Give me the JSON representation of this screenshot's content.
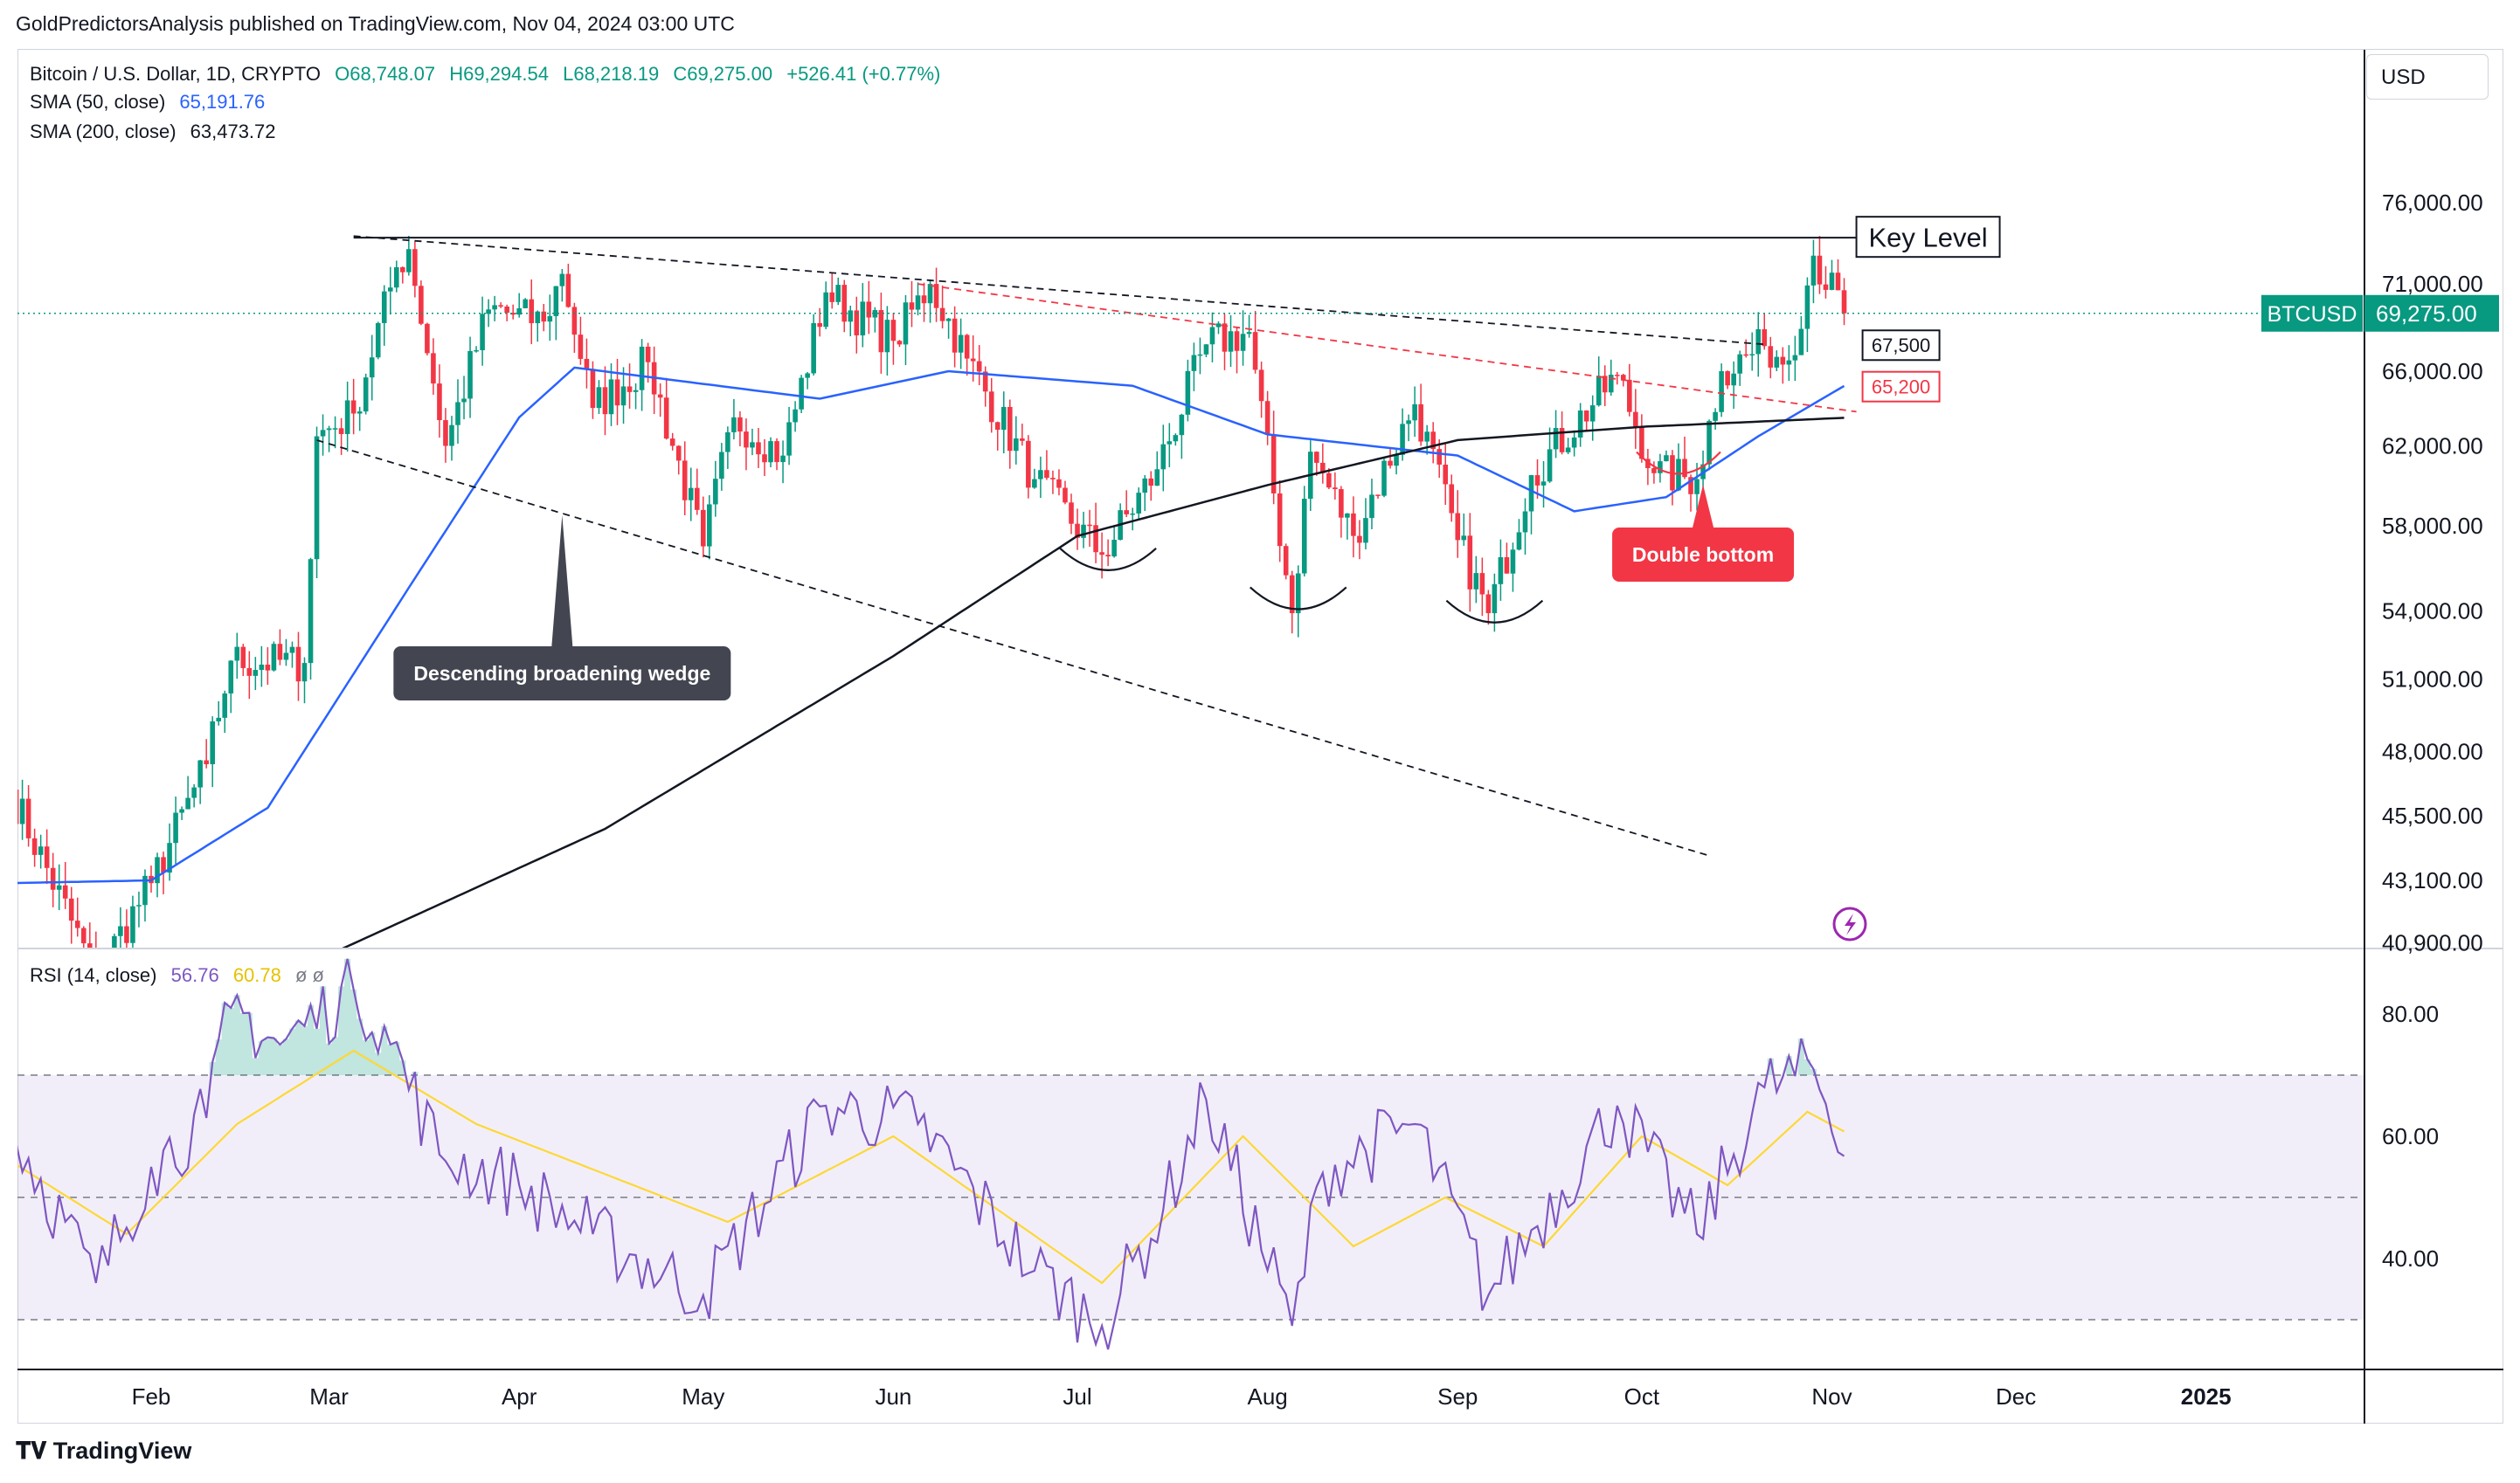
{
  "header": {
    "publisher": "GoldPredictorsAnalysis published on TradingView.com, Nov 04, 2024 03:00 UTC"
  },
  "legend": {
    "symbol": "Bitcoin / U.S. Dollar, 1D, CRYPTO",
    "open": "O68,748.07",
    "high": "H69,294.54",
    "low": "L68,218.19",
    "close": "C69,275.00",
    "change": "+526.41 (+0.77%)",
    "sma50_label": "SMA (50, close)",
    "sma50_value": "65,191.76",
    "sma200_label": "SMA (200, close)",
    "sma200_value": "63,473.72",
    "rsi_label": "RSI (14, close)",
    "rsi_value": "56.76",
    "rsi_ma_value": "60.78",
    "rsi_extra": "ø ø"
  },
  "currency_button": "USD",
  "footer": {
    "brand": "TradingView"
  },
  "colors": {
    "up": "#089981",
    "down": "#f23645",
    "sma50": "#2962ff",
    "sma200": "#131722",
    "rsi": "#7e57c2",
    "rsi_ma": "#fdd835",
    "rsi_band": "#7e57c2"
  },
  "chart_data": [
    {
      "type": "candlestick",
      "title": "Bitcoin / U.S. Dollar, 1D, CRYPTO",
      "x_tick_labels": [
        "Feb",
        "Mar",
        "Apr",
        "May",
        "Jun",
        "Jul",
        "Aug",
        "Sep",
        "Oct",
        "Nov",
        "Dec",
        "2025"
      ],
      "y_tick_labels": [
        "76,000.00",
        "71,000.00",
        "66,000.00",
        "62,000.00",
        "58,000.00",
        "54,000.00",
        "51,000.00",
        "48,000.00",
        "45,500.00",
        "43,100.00",
        "40,900.00"
      ],
      "y_scale": "log",
      "last_price_label": {
        "symbol": "BTCUSD",
        "price": "69,275.00"
      },
      "series": [
        {
          "name": "BTCUSD",
          "type": "candlestick"
        },
        {
          "name": "SMA (50, close)",
          "type": "line"
        },
        {
          "name": "SMA (200, close)",
          "type": "line"
        }
      ],
      "anchors": [
        {
          "date": "2024-01-09",
          "price": 46500
        },
        {
          "date": "2024-01-23",
          "price": 39800
        },
        {
          "date": "2024-02-01",
          "price": 43000
        },
        {
          "date": "2024-02-10",
          "price": 47500
        },
        {
          "date": "2024-02-14",
          "price": 51800
        },
        {
          "date": "2024-02-26",
          "price": 51700
        },
        {
          "date": "2024-02-28",
          "price": 62500
        },
        {
          "date": "2024-03-05",
          "price": 63700
        },
        {
          "date": "2024-03-12",
          "price": 72000
        },
        {
          "date": "2024-03-14",
          "price": 73100
        },
        {
          "date": "2024-03-20",
          "price": 62000
        },
        {
          "date": "2024-03-27",
          "price": 69500
        },
        {
          "date": "2024-04-05",
          "price": 68800
        },
        {
          "date": "2024-04-08",
          "price": 71600
        },
        {
          "date": "2024-04-13",
          "price": 64000
        },
        {
          "date": "2024-04-22",
          "price": 66500
        },
        {
          "date": "2024-05-01",
          "price": 57000
        },
        {
          "date": "2024-05-06",
          "price": 63500
        },
        {
          "date": "2024-05-14",
          "price": 61500
        },
        {
          "date": "2024-05-21",
          "price": 70500
        },
        {
          "date": "2024-06-01",
          "price": 67700
        },
        {
          "date": "2024-06-07",
          "price": 71000
        },
        {
          "date": "2024-06-13",
          "price": 66700
        },
        {
          "date": "2024-06-24",
          "price": 60300
        },
        {
          "date": "2024-07-05",
          "price": 56600
        },
        {
          "date": "2024-07-14",
          "price": 60800
        },
        {
          "date": "2024-07-22",
          "price": 67500
        },
        {
          "date": "2024-07-29",
          "price": 68200
        },
        {
          "date": "2024-08-05",
          "price": 53900
        },
        {
          "date": "2024-08-08",
          "price": 61700
        },
        {
          "date": "2024-08-15",
          "price": 57500
        },
        {
          "date": "2024-08-25",
          "price": 64200
        },
        {
          "date": "2024-09-01",
          "price": 57300
        },
        {
          "date": "2024-09-06",
          "price": 53900
        },
        {
          "date": "2024-09-13",
          "price": 60500
        },
        {
          "date": "2024-09-27",
          "price": 65800
        },
        {
          "date": "2024-10-03",
          "price": 60600
        },
        {
          "date": "2024-10-10",
          "price": 60300
        },
        {
          "date": "2024-10-14",
          "price": 66000
        },
        {
          "date": "2024-10-21",
          "price": 67400
        },
        {
          "date": "2024-10-25",
          "price": 66600
        },
        {
          "date": "2024-10-29",
          "price": 72700
        },
        {
          "date": "2024-11-03",
          "price": 69275
        }
      ],
      "sma50_approx": [
        {
          "date": "2024-01-09",
          "price": 43000
        },
        {
          "date": "2024-02-01",
          "price": 43100
        },
        {
          "date": "2024-02-20",
          "price": 45800
        },
        {
          "date": "2024-03-15",
          "price": 55500
        },
        {
          "date": "2024-04-01",
          "price": 63500
        },
        {
          "date": "2024-04-10",
          "price": 66200
        },
        {
          "date": "2024-05-20",
          "price": 64500
        },
        {
          "date": "2024-06-10",
          "price": 66000
        },
        {
          "date": "2024-07-10",
          "price": 65200
        },
        {
          "date": "2024-08-01",
          "price": 62600
        },
        {
          "date": "2024-09-01",
          "price": 61500
        },
        {
          "date": "2024-09-20",
          "price": 58700
        },
        {
          "date": "2024-10-05",
          "price": 59400
        },
        {
          "date": "2024-10-20",
          "price": 62500
        },
        {
          "date": "2024-11-03",
          "price": 65191.76
        }
      ],
      "sma200_approx": [
        {
          "date": "2024-03-01",
          "price": 40500
        },
        {
          "date": "2024-04-15",
          "price": 45000
        },
        {
          "date": "2024-06-01",
          "price": 52000
        },
        {
          "date": "2024-07-01",
          "price": 57500
        },
        {
          "date": "2024-08-01",
          "price": 60000
        },
        {
          "date": "2024-09-01",
          "price": 62300
        },
        {
          "date": "2024-10-01",
          "price": 63000
        },
        {
          "date": "2024-11-03",
          "price": 63473.72
        }
      ],
      "annotations": [
        {
          "text": "Key Level",
          "price": 73800
        },
        {
          "text": "67,500",
          "price": 67500
        },
        {
          "text": "65,200",
          "price": 65200
        },
        {
          "text": "Double bottom"
        },
        {
          "text": "Descending broadening wedge"
        }
      ]
    },
    {
      "type": "line",
      "title": "RSI (14, close)",
      "ylim": [
        20,
        100
      ],
      "y_tick_labels": [
        "80.00",
        "60.00",
        "40.00"
      ],
      "bands": {
        "upper": 70,
        "middle": 50,
        "lower": 30
      },
      "series": [
        {
          "name": "RSI",
          "anchors": [
            {
              "date": "2024-01-09",
              "value": 62
            },
            {
              "date": "2024-01-23",
              "value": 36
            },
            {
              "date": "2024-02-01",
              "value": 55
            },
            {
              "date": "2024-02-10",
              "value": 63
            },
            {
              "date": "2024-02-14",
              "value": 81
            },
            {
              "date": "2024-02-22",
              "value": 75
            },
            {
              "date": "2024-03-05",
              "value": 84
            },
            {
              "date": "2024-03-10",
              "value": 78
            },
            {
              "date": "2024-03-19",
              "value": 57
            },
            {
              "date": "2024-04-01",
              "value": 52
            },
            {
              "date": "2024-04-13",
              "value": 44
            },
            {
              "date": "2024-05-01",
              "value": 34
            },
            {
              "date": "2024-05-21",
              "value": 65
            },
            {
              "date": "2024-06-05",
              "value": 62
            },
            {
              "date": "2024-06-24",
              "value": 38
            },
            {
              "date": "2024-07-05",
              "value": 29
            },
            {
              "date": "2024-07-15",
              "value": 48
            },
            {
              "date": "2024-07-22",
              "value": 66
            },
            {
              "date": "2024-08-05",
              "value": 29
            },
            {
              "date": "2024-08-10",
              "value": 54
            },
            {
              "date": "2024-08-25",
              "value": 62
            },
            {
              "date": "2024-09-06",
              "value": 34
            },
            {
              "date": "2024-09-27",
              "value": 65
            },
            {
              "date": "2024-10-10",
              "value": 44
            },
            {
              "date": "2024-10-21",
              "value": 68
            },
            {
              "date": "2024-10-29",
              "value": 71
            },
            {
              "date": "2024-11-03",
              "value": 56.76
            }
          ]
        },
        {
          "name": "RSI MA",
          "anchors": [
            {
              "date": "2024-01-09",
              "value": 56
            },
            {
              "date": "2024-01-28",
              "value": 44
            },
            {
              "date": "2024-02-15",
              "value": 62
            },
            {
              "date": "2024-03-05",
              "value": 74
            },
            {
              "date": "2024-03-25",
              "value": 62
            },
            {
              "date": "2024-05-05",
              "value": 46
            },
            {
              "date": "2024-06-01",
              "value": 60
            },
            {
              "date": "2024-07-05",
              "value": 36
            },
            {
              "date": "2024-07-28",
              "value": 60
            },
            {
              "date": "2024-08-15",
              "value": 42
            },
            {
              "date": "2024-08-30",
              "value": 50
            },
            {
              "date": "2024-09-15",
              "value": 42
            },
            {
              "date": "2024-10-01",
              "value": 60
            },
            {
              "date": "2024-10-15",
              "value": 52
            },
            {
              "date": "2024-10-28",
              "value": 64
            },
            {
              "date": "2024-11-03",
              "value": 60.78
            }
          ]
        }
      ]
    }
  ]
}
